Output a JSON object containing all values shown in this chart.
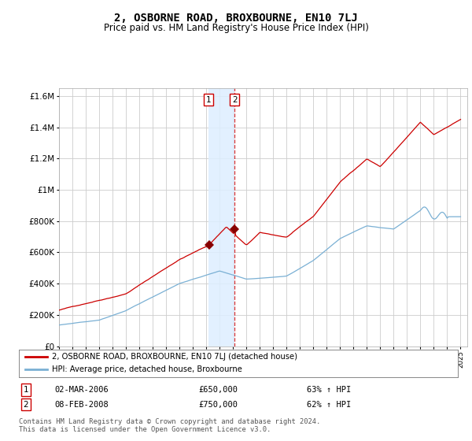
{
  "title": "2, OSBORNE ROAD, BROXBOURNE, EN10 7LJ",
  "subtitle": "Price paid vs. HM Land Registry's House Price Index (HPI)",
  "red_line_label": "2, OSBORNE ROAD, BROXBOURNE, EN10 7LJ (detached house)",
  "blue_line_label": "HPI: Average price, detached house, Broxbourne",
  "sale1_date": "02-MAR-2006",
  "sale1_price": "£650,000",
  "sale1_pct": "63% ↑ HPI",
  "sale1_year": 2006.17,
  "sale1_value": 650000,
  "sale2_date": "08-FEB-2008",
  "sale2_price": "£750,000",
  "sale2_pct": "62% ↑ HPI",
  "sale2_year": 2008.12,
  "sale2_value": 750000,
  "footer": "Contains HM Land Registry data © Crown copyright and database right 2024.\nThis data is licensed under the Open Government Licence v3.0.",
  "ylim": [
    0,
    1650000
  ],
  "xlim_left": 1995.0,
  "xlim_right": 2025.5,
  "background_color": "#ffffff",
  "grid_color": "#cccccc",
  "red_color": "#cc0000",
  "blue_color": "#7ab0d4",
  "shade_color": "#ddeeff",
  "title_fontsize": 10,
  "subtitle_fontsize": 8.5
}
